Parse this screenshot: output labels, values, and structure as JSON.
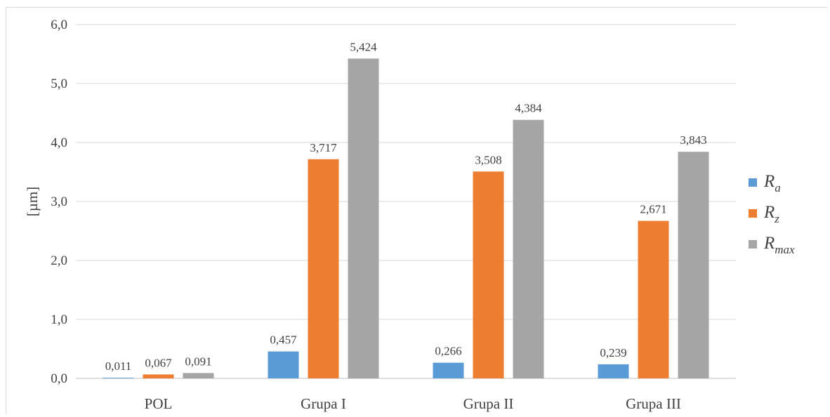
{
  "chart_data": {
    "type": "bar",
    "categories": [
      "POL",
      "Grupa I",
      "Grupa II",
      "Grupa III"
    ],
    "series": [
      {
        "name": "R_a",
        "base": "R",
        "sub": "a",
        "color": "#5b9bd5",
        "values": [
          0.011,
          0.457,
          0.266,
          0.239
        ],
        "labels": [
          "0,011",
          "0,457",
          "0,266",
          "0,239"
        ]
      },
      {
        "name": "R_z",
        "base": "R",
        "sub": "z",
        "color": "#ed7d31",
        "values": [
          0.067,
          3.717,
          3.508,
          2.671
        ],
        "labels": [
          "0,067",
          "3,717",
          "3,508",
          "2,671"
        ]
      },
      {
        "name": "R_max",
        "base": "R",
        "sub": "max",
        "color": "#a5a5a5",
        "values": [
          0.091,
          5.424,
          4.384,
          3.843
        ],
        "labels": [
          "0,091",
          "5,424",
          "4,384",
          "3,843"
        ]
      }
    ],
    "ylabel": "[µm]",
    "ylim": [
      0,
      6
    ],
    "yticks": [
      0,
      1,
      2,
      3,
      4,
      5,
      6
    ],
    "ytick_labels": [
      "0,0",
      "1,0",
      "2,0",
      "3,0",
      "4,0",
      "5,0",
      "6,0"
    ],
    "grid": true,
    "legend": "right"
  }
}
